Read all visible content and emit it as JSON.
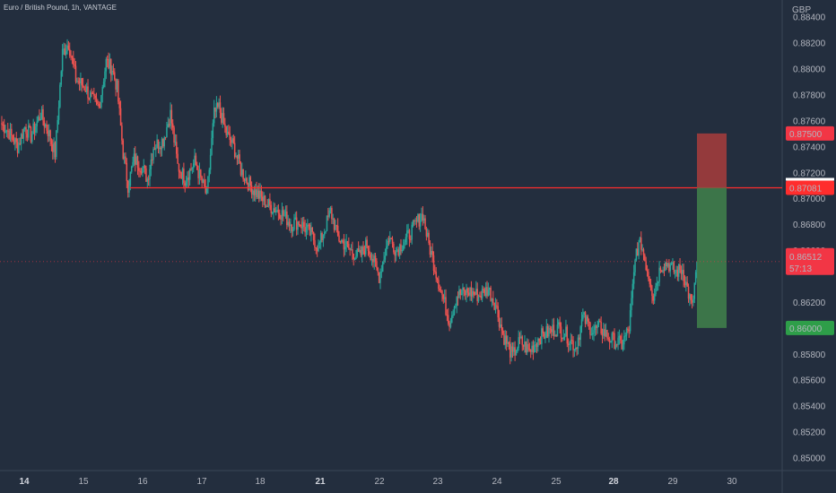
{
  "symbol_label": "Euro / British Pound, 1h, VANTAGE",
  "colors": {
    "background": "#232e3e",
    "up_candle": "#26a69a",
    "down_candle": "#ef5350",
    "resistance_line": "#ff2d2d",
    "stop_zone": "#a83c3c",
    "target_zone": "#3f7d4a",
    "price_badge": "#f23645",
    "target_badge": "#2e9e49",
    "axis_text": "#b2b5be"
  },
  "chart_data": {
    "type": "candlestick",
    "currency_label": "GBP",
    "ylim": [
      0.849,
      0.8846
    ],
    "yticks": [
      "0.88400",
      "0.88200",
      "0.88000",
      "0.87800",
      "0.87600",
      "0.87400",
      "0.87200",
      "0.87000",
      "0.86800",
      "0.86600",
      "0.86200",
      "0.85800",
      "0.85600",
      "0.85400",
      "0.85200",
      "0.85000"
    ],
    "xticks": [
      {
        "label": "14",
        "bold": true
      },
      {
        "label": "15",
        "bold": false
      },
      {
        "label": "16",
        "bold": false
      },
      {
        "label": "17",
        "bold": false
      },
      {
        "label": "18",
        "bold": false
      },
      {
        "label": "21",
        "bold": true
      },
      {
        "label": "22",
        "bold": false
      },
      {
        "label": "23",
        "bold": false
      },
      {
        "label": "24",
        "bold": false
      },
      {
        "label": "25",
        "bold": false
      },
      {
        "label": "28",
        "bold": true
      },
      {
        "label": "29",
        "bold": false
      },
      {
        "label": "30",
        "bold": false
      }
    ],
    "price_path": [
      [
        0.8758,
        14
      ],
      [
        0.8752,
        6
      ],
      [
        0.874,
        8
      ],
      [
        0.8755,
        6
      ],
      [
        0.8748,
        5
      ],
      [
        0.8765,
        8
      ],
      [
        0.8752,
        6
      ],
      [
        0.8735,
        6
      ],
      [
        0.8812,
        6
      ],
      [
        0.882,
        5
      ],
      [
        0.8792,
        6
      ],
      [
        0.8785,
        8
      ],
      [
        0.8775,
        6
      ],
      [
        0.877,
        5
      ],
      [
        0.8805,
        6
      ],
      [
        0.88,
        5
      ],
      [
        0.8785,
        4
      ],
      [
        0.8735,
        5
      ],
      [
        0.871,
        4
      ],
      [
        0.873,
        5
      ],
      [
        0.8725,
        6
      ],
      [
        0.8715,
        5
      ],
      [
        0.874,
        5
      ],
      [
        0.8745,
        8
      ],
      [
        0.8765,
        6
      ],
      [
        0.8725,
        6
      ],
      [
        0.8715,
        6
      ],
      [
        0.8728,
        8
      ],
      [
        0.8712,
        6
      ],
      [
        0.8702,
        4
      ],
      [
        0.8765,
        6
      ],
      [
        0.877,
        4
      ],
      [
        0.875,
        6
      ],
      [
        0.874,
        6
      ],
      [
        0.8722,
        6
      ],
      [
        0.8712,
        6
      ],
      [
        0.8705,
        6
      ],
      [
        0.8695,
        10
      ],
      [
        0.869,
        10
      ],
      [
        0.868,
        10
      ],
      [
        0.8682,
        6
      ],
      [
        0.8672,
        10
      ],
      [
        0.8662,
        6
      ],
      [
        0.869,
        10
      ],
      [
        0.867,
        6
      ],
      [
        0.866,
        10
      ],
      [
        0.8655,
        8
      ],
      [
        0.8665,
        6
      ],
      [
        0.864,
        10
      ],
      [
        0.867,
        8
      ],
      [
        0.866,
        6
      ],
      [
        0.8668,
        8
      ],
      [
        0.868,
        8
      ],
      [
        0.8688,
        6
      ],
      [
        0.8668,
        4
      ],
      [
        0.8632,
        10
      ],
      [
        0.8605,
        8
      ],
      [
        0.8625,
        6
      ],
      [
        0.8628,
        10
      ],
      [
        0.8625,
        8
      ],
      [
        0.863,
        8
      ],
      [
        0.8618,
        6
      ],
      [
        0.8595,
        6
      ],
      [
        0.8578,
        8
      ],
      [
        0.859,
        6
      ],
      [
        0.8582,
        8
      ],
      [
        0.8593,
        8
      ],
      [
        0.8598,
        10
      ],
      [
        0.86,
        6
      ],
      [
        0.8595,
        6
      ],
      [
        0.8585,
        8
      ],
      [
        0.8608,
        6
      ],
      [
        0.8598,
        8
      ],
      [
        0.86,
        6
      ],
      [
        0.8592,
        8
      ],
      [
        0.8587,
        10
      ],
      [
        0.86,
        6
      ],
      [
        0.866,
        6
      ],
      [
        0.8665,
        4
      ],
      [
        0.8625,
        10
      ],
      [
        0.8648,
        6
      ],
      [
        0.865,
        6
      ],
      [
        0.8643,
        6
      ],
      [
        0.8645,
        6
      ],
      [
        0.863,
        4
      ],
      [
        0.8615,
        4
      ],
      [
        0.8651,
        4
      ]
    ],
    "resistance_line": {
      "price": 0.87081,
      "label": "0.87081"
    },
    "position_tool": {
      "stop_price": 0.875,
      "entry_price": 0.87081,
      "target_price": 0.86
    },
    "badges": {
      "stop": "0.87500",
      "resistance": "0.87081",
      "current": "0.86512",
      "countdown": "57:13",
      "target": "0.86000"
    },
    "current_price": 0.86512
  }
}
